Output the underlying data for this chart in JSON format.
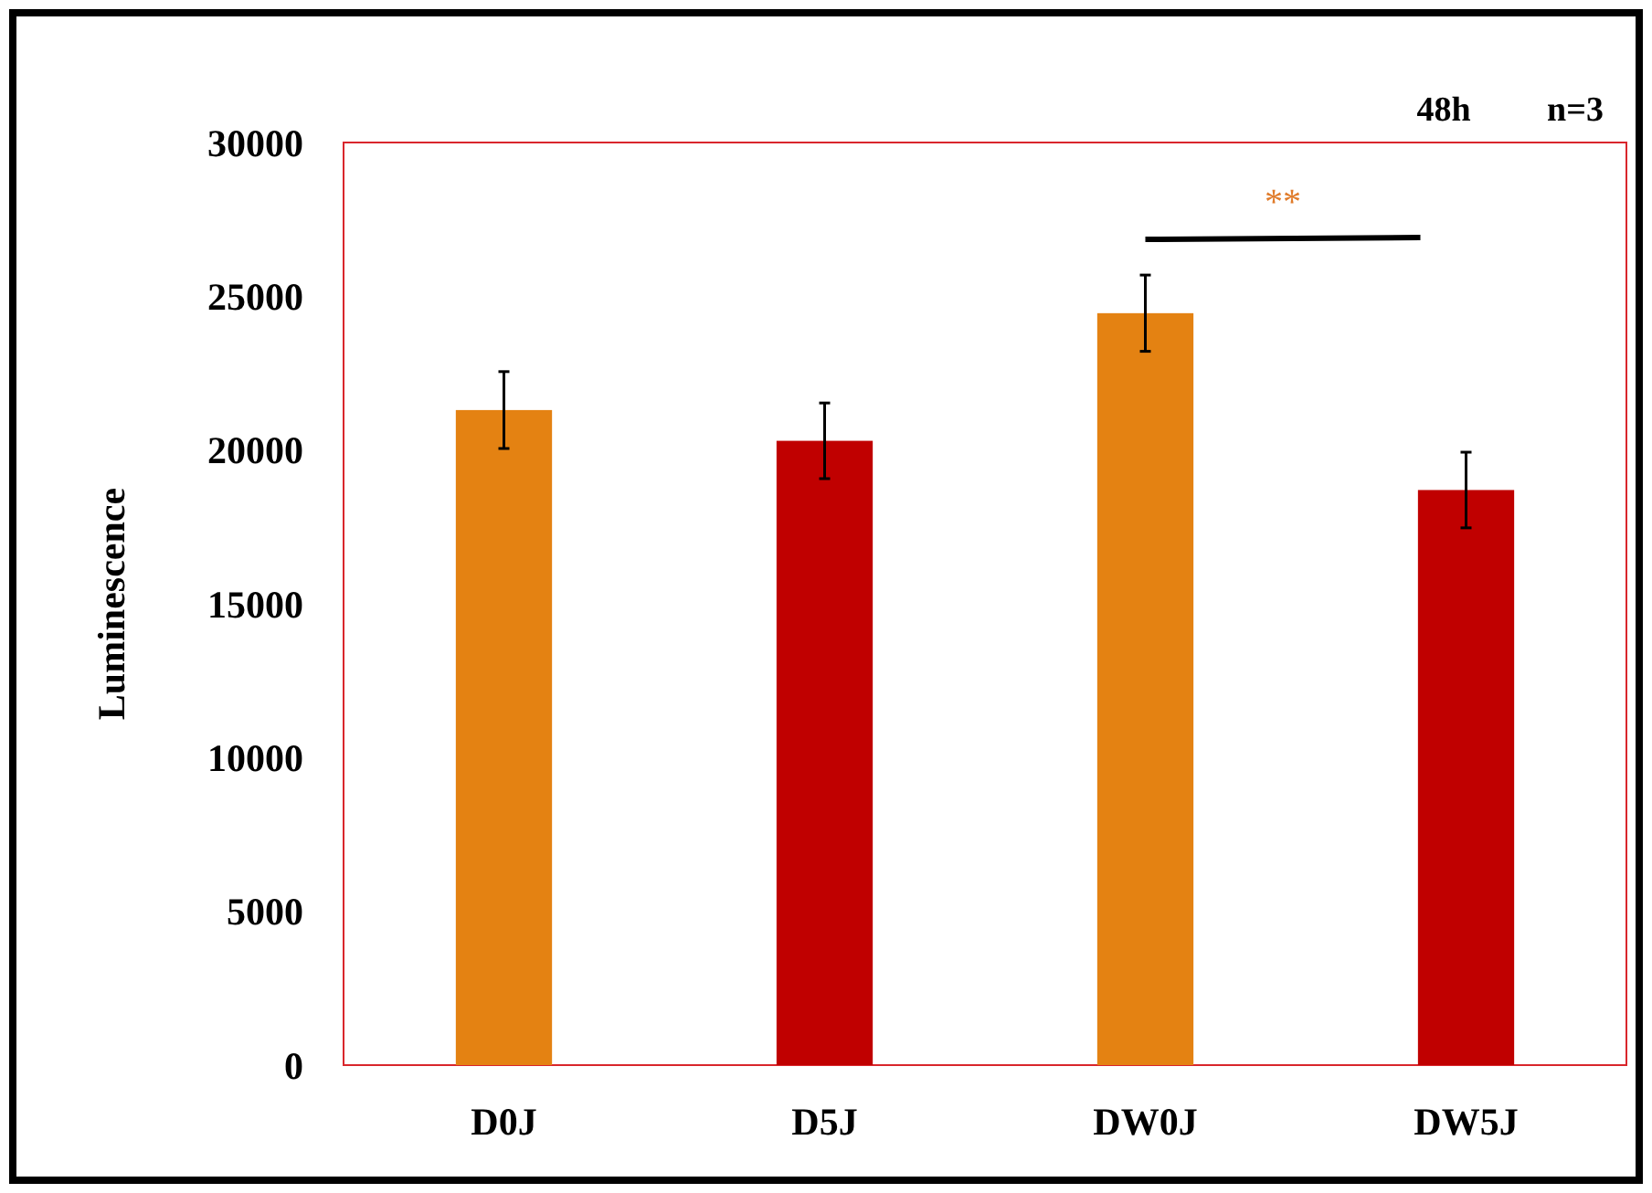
{
  "chart_data": {
    "type": "bar",
    "ylabel": "Luminescence",
    "categories": [
      "D0J",
      "D5J",
      "DW0J",
      "DW5J"
    ],
    "values": [
      21300,
      20300,
      24450,
      18700
    ],
    "colors": [
      "#e48212",
      "#c00000",
      "#e48212",
      "#c00000"
    ],
    "errors": [
      1250,
      1230,
      1240,
      1230
    ],
    "ylim": [
      0,
      30000
    ],
    "yticks": [
      0,
      5000,
      10000,
      15000,
      20000,
      25000,
      30000
    ],
    "grid": false,
    "annotations": [
      "48h",
      "n=3",
      "**"
    ]
  }
}
